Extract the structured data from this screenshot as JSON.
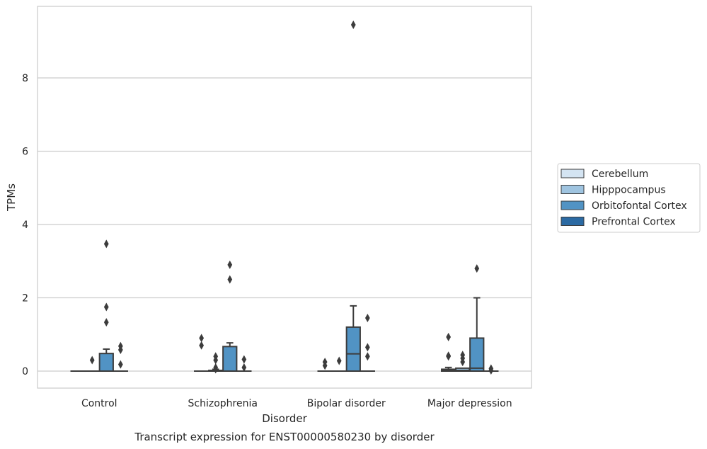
{
  "chart_data": {
    "type": "box",
    "title": "",
    "caption": "Transcript expression for ENST00000580230 by disorder",
    "xlabel": "Disorder",
    "ylabel": "TPMs",
    "ylim": [
      -0.45,
      9.9
    ],
    "yticks": [
      0,
      2,
      4,
      6,
      8
    ],
    "categories": [
      "Control",
      "Schizophrenia",
      "Bipolar disorder",
      "Major depression"
    ],
    "grid": "horizontal",
    "legend_position": "right",
    "series": [
      {
        "name": "Cerebellum",
        "color": "#d4e4f2",
        "boxes": [
          {
            "q1": 0,
            "median": 0,
            "q3": 0,
            "whisker_low": 0,
            "whisker_high": 0,
            "outliers": []
          },
          {
            "q1": 0,
            "median": 0,
            "q3": 0,
            "whisker_low": 0,
            "whisker_high": 0,
            "outliers": [
              0.9,
              0.7
            ]
          },
          {
            "q1": 0,
            "median": 0,
            "q3": 0,
            "whisker_low": 0,
            "whisker_high": 0,
            "outliers": [
              0.25,
              0.15
            ]
          },
          {
            "q1": 0,
            "median": 0.03,
            "q3": 0.05,
            "whisker_low": 0,
            "whisker_high": 0.1,
            "outliers": [
              0.93,
              0.42,
              0.4
            ]
          }
        ]
      },
      {
        "name": "Hipppocampus",
        "color": "#9fc4e0",
        "boxes": [
          {
            "q1": 0,
            "median": 0,
            "q3": 0,
            "whisker_low": 0,
            "whisker_high": 0,
            "outliers": [
              0.3
            ]
          },
          {
            "q1": 0,
            "median": 0,
            "q3": 0.02,
            "whisker_low": 0,
            "whisker_high": 0.05,
            "outliers": [
              0.4,
              0.3,
              0.1,
              0.05
            ]
          },
          {
            "q1": 0,
            "median": 0,
            "q3": 0,
            "whisker_low": 0,
            "whisker_high": 0,
            "outliers": [
              0.28
            ]
          },
          {
            "q1": 0,
            "median": 0.02,
            "q3": 0.08,
            "whisker_low": 0,
            "whisker_high": 0.08,
            "outliers": [
              0.44,
              0.35,
              0.25
            ]
          }
        ]
      },
      {
        "name": "Orbitofontal Cortex",
        "color": "#5193c4",
        "boxes": [
          {
            "q1": 0,
            "median": 0,
            "q3": 0.48,
            "whisker_low": 0,
            "whisker_high": 0.6,
            "outliers": [
              3.47,
              1.75,
              1.33
            ]
          },
          {
            "q1": 0,
            "median": 0,
            "q3": 0.67,
            "whisker_low": 0,
            "whisker_high": 0.77,
            "outliers": [
              2.9,
              2.5
            ]
          },
          {
            "q1": 0,
            "median": 0.47,
            "q3": 1.2,
            "whisker_low": 0,
            "whisker_high": 1.78,
            "outliers": [
              9.45
            ]
          },
          {
            "q1": 0,
            "median": 0.08,
            "q3": 0.9,
            "whisker_low": 0,
            "whisker_high": 2.0,
            "outliers": [
              2.8
            ]
          }
        ]
      },
      {
        "name": "Prefrontal Cortex",
        "color": "#2b6aa3",
        "boxes": [
          {
            "q1": 0,
            "median": 0,
            "q3": 0,
            "whisker_low": 0,
            "whisker_high": 0,
            "outliers": [
              0.68,
              0.58,
              0.18
            ]
          },
          {
            "q1": 0,
            "median": 0,
            "q3": 0,
            "whisker_low": 0,
            "whisker_high": 0,
            "outliers": [
              0.32,
              0.1
            ]
          },
          {
            "q1": 0,
            "median": 0,
            "q3": 0,
            "whisker_low": 0,
            "whisker_high": 0,
            "outliers": [
              1.45,
              0.65,
              0.4
            ]
          },
          {
            "q1": 0,
            "median": 0,
            "q3": 0,
            "whisker_low": 0,
            "whisker_high": 0,
            "outliers": [
              0.07,
              0.02
            ]
          }
        ]
      }
    ]
  }
}
